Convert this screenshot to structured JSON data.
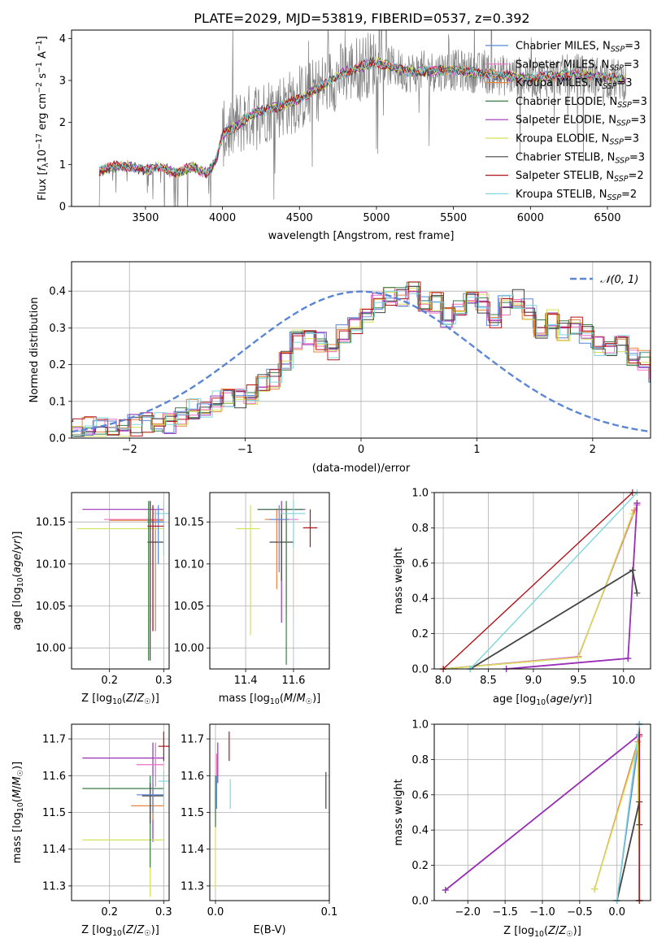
{
  "figure_title": "PLATE=2029, MJD=53819, FIBERID=0537, z=0.392",
  "legend_entries": [
    {
      "label": "Chabrier MILES, N_{SSP}=3",
      "color": "#5b86d6"
    },
    {
      "label": "Salpeter MILES, N_{SSP}=3",
      "color": "#f06ec4"
    },
    {
      "label": "Kroupa MILES, N_{SSP}=3",
      "color": "#e8833a"
    },
    {
      "label": "Chabrier ELODIE, N_{SSP}=3",
      "color": "#3a7d44"
    },
    {
      "label": "Salpeter ELODIE, N_{SSP}=3",
      "color": "#9b30b8"
    },
    {
      "label": "Kroupa ELODIE, N_{SSP}=3",
      "color": "#d4e157"
    },
    {
      "label": "Chabrier STELIB, N_{SSP}=3",
      "color": "#444444"
    },
    {
      "label": "Salpeter STELIB, N_{SSP}=2",
      "color": "#b3141b"
    },
    {
      "label": "Kroupa STELIB, N_{SSP}=2",
      "color": "#7fd6dc"
    }
  ],
  "normal_legend": "𝒩(0, 1)",
  "chart_data": [
    {
      "id": "spectrum",
      "type": "line",
      "xlabel": "wavelength [Angstrom, rest frame]",
      "ylabel": "Flux [f_λ 10^{-17} erg cm^{-2} s^{-1} A^{-1}]",
      "xlim": [
        3020,
        6780
      ],
      "ylim": [
        0,
        4.2
      ],
      "xticks": [
        3500,
        4000,
        4500,
        5000,
        5500,
        6000,
        6500
      ],
      "yticks": [
        0,
        1,
        2,
        3,
        4
      ],
      "grid": false,
      "legend_position": "top-right",
      "data_range": [
        3200,
        6620
      ],
      "continuum_points": [
        [
          3200,
          0.85
        ],
        [
          3300,
          0.95
        ],
        [
          3400,
          0.95
        ],
        [
          3500,
          0.85
        ],
        [
          3600,
          0.95
        ],
        [
          3700,
          0.78
        ],
        [
          3800,
          0.95
        ],
        [
          3900,
          0.78
        ],
        [
          3960,
          1.1
        ],
        [
          4000,
          1.7
        ],
        [
          4200,
          2.2
        ],
        [
          4500,
          2.55
        ],
        [
          4800,
          3.2
        ],
        [
          5000,
          3.45
        ],
        [
          5200,
          3.2
        ],
        [
          5500,
          3.25
        ],
        [
          6000,
          3.05
        ],
        [
          6300,
          3.15
        ],
        [
          6620,
          3.0
        ]
      ]
    },
    {
      "id": "residual_hist",
      "type": "histogram",
      "xlabel": "(data-model)/error",
      "ylabel": "Normed distribution",
      "xlim": [
        -2.5,
        2.5
      ],
      "ylim": [
        0,
        0.48
      ],
      "xticks": [
        -2,
        -1,
        0,
        1,
        2
      ],
      "yticks": [
        0.0,
        0.1,
        0.2,
        0.3,
        0.4
      ],
      "grid": true,
      "legend_position": "top-right",
      "bin_width": 0.1,
      "series_base": [
        0.02,
        0.025,
        0.03,
        0.03,
        0.035,
        0.03,
        0.035,
        0.04,
        0.045,
        0.04,
        0.06,
        0.08,
        0.085,
        0.1,
        0.11,
        0.11,
        0.12,
        0.15,
        0.16,
        0.21,
        0.27,
        0.28,
        0.26,
        0.24,
        0.28,
        0.31,
        0.34,
        0.37,
        0.39,
        0.38,
        0.41,
        0.36,
        0.37,
        0.33,
        0.36,
        0.39,
        0.37,
        0.33,
        0.36,
        0.38,
        0.35,
        0.3,
        0.32,
        0.29,
        0.3,
        0.28,
        0.25,
        0.24,
        0.26,
        0.22,
        0.21,
        0.18,
        0.18,
        0.16,
        0.15,
        0.13,
        0.12,
        0.1,
        0.09,
        0.08,
        0.07,
        0.065,
        0.06,
        0.045,
        0.045,
        0.04,
        0.035,
        0.04,
        0.03,
        0.025,
        0.03,
        0.035
      ],
      "normal_curve": {
        "mu": 0,
        "sigma": 1,
        "color": "#5b86d6"
      }
    },
    {
      "id": "age_vs_Z",
      "type": "errorbar",
      "xlabel": "Z [log10(Z/Z☉)]",
      "ylabel": "age [log10(age/yr)]",
      "xlim": [
        0.13,
        0.31
      ],
      "ylim": [
        9.975,
        10.185
      ],
      "xticks": [
        0.2,
        0.3
      ],
      "yticks": [
        10.0,
        10.05,
        10.1,
        10.15
      ],
      "grid": true,
      "points": [
        {
          "x": 0.275,
          "y": 10.165,
          "xlo": 0.15,
          "xhi": 0.3,
          "ylo": 10.03,
          "yhi": 10.175,
          "c": 4
        },
        {
          "x": 0.28,
          "y": 10.153,
          "xlo": 0.19,
          "xhi": 0.3,
          "ylo": 10.02,
          "yhi": 10.17,
          "c": 1
        },
        {
          "x": 0.285,
          "y": 10.152,
          "xlo": 0.2,
          "xhi": 0.3,
          "ylo": 10.02,
          "yhi": 10.165,
          "c": 2
        },
        {
          "x": 0.275,
          "y": 10.142,
          "xlo": 0.14,
          "xhi": 0.3,
          "ylo": 10.0,
          "yhi": 10.17,
          "c": 5
        },
        {
          "x": 0.275,
          "y": 10.126,
          "xlo": 0.27,
          "xhi": 0.3,
          "ylo": 9.985,
          "yhi": 10.175,
          "c": 6
        },
        {
          "x": 0.272,
          "y": 10.15,
          "xlo": 0.27,
          "xhi": 0.3,
          "ylo": 9.985,
          "yhi": 10.175,
          "c": 3
        },
        {
          "x": 0.3,
          "y": 10.16,
          "xlo": 0.28,
          "xhi": 0.31,
          "ylo": 10.11,
          "yhi": 10.175,
          "c": 8
        },
        {
          "x": 0.29,
          "y": 10.15,
          "xlo": 0.275,
          "xhi": 0.3,
          "ylo": 10.1,
          "yhi": 10.17,
          "c": 0
        },
        {
          "x": 0.28,
          "y": 10.145,
          "xlo": 0.27,
          "xhi": 0.3,
          "ylo": 10.02,
          "yhi": 10.17,
          "c": 7
        }
      ]
    },
    {
      "id": "age_vs_mass",
      "type": "errorbar",
      "xlabel": "mass [log10(M/M☉)]",
      "ylabel": "",
      "xlim": [
        11.25,
        11.75
      ],
      "ylim": [
        9.975,
        10.185
      ],
      "xticks": [
        11.4,
        11.6
      ],
      "yticks": [
        10.0,
        10.05,
        10.1,
        10.15
      ],
      "grid": true,
      "points": [
        {
          "x": 11.55,
          "y": 10.165,
          "xlo": 11.45,
          "xhi": 11.65,
          "ylo": 10.03,
          "yhi": 10.175,
          "c": 4
        },
        {
          "x": 11.57,
          "y": 10.153,
          "xlo": 11.49,
          "xhi": 11.62,
          "ylo": 10.04,
          "yhi": 10.17,
          "c": 1
        },
        {
          "x": 11.53,
          "y": 10.153,
          "xlo": 11.48,
          "xhi": 11.58,
          "ylo": 10.07,
          "yhi": 10.165,
          "c": 2
        },
        {
          "x": 11.42,
          "y": 10.142,
          "xlo": 11.36,
          "xhi": 11.46,
          "ylo": 10.015,
          "yhi": 10.17,
          "c": 5
        },
        {
          "x": 11.55,
          "y": 10.126,
          "xlo": 11.5,
          "xhi": 11.6,
          "ylo": 10.08,
          "yhi": 10.16,
          "c": 6
        },
        {
          "x": 11.57,
          "y": 10.165,
          "xlo": 11.45,
          "xhi": 11.64,
          "ylo": 9.98,
          "yhi": 10.175,
          "c": 3
        },
        {
          "x": 11.6,
          "y": 10.16,
          "xlo": 11.55,
          "xhi": 11.65,
          "ylo": 10.12,
          "yhi": 10.175,
          "c": 8
        },
        {
          "x": 11.54,
          "y": 10.153,
          "xlo": 11.5,
          "xhi": 11.58,
          "ylo": 10.09,
          "yhi": 10.17,
          "c": 0
        },
        {
          "x": 11.67,
          "y": 10.143,
          "xlo": 11.64,
          "xhi": 11.7,
          "ylo": 10.12,
          "yhi": 10.165,
          "c": 7
        }
      ]
    },
    {
      "id": "weight_vs_age",
      "type": "line",
      "xlabel": "age [log10(age/yr)]",
      "ylabel": "mass weight",
      "xlim": [
        7.9,
        10.3
      ],
      "ylim": [
        0,
        1
      ],
      "xticks": [
        8.0,
        8.5,
        9.0,
        9.5,
        10.0
      ],
      "yticks": [
        0.0,
        0.2,
        0.4,
        0.6,
        0.8,
        1.0
      ],
      "grid": true,
      "series": [
        {
          "c": 0,
          "x": [
            8.0,
            9.5,
            10.15
          ],
          "y": [
            0.0,
            0.07,
            0.93
          ]
        },
        {
          "c": 1,
          "x": [
            8.0,
            9.5,
            10.15
          ],
          "y": [
            0.0,
            0.07,
            0.93
          ]
        },
        {
          "c": 2,
          "x": [
            8.0,
            9.5,
            10.12
          ],
          "y": [
            0.0,
            0.065,
            0.9
          ]
        },
        {
          "c": 3,
          "x": [
            8.7,
            10.05,
            10.15
          ],
          "y": [
            0.0,
            0.06,
            0.94
          ]
        },
        {
          "c": 4,
          "x": [
            8.7,
            10.05,
            10.15
          ],
          "y": [
            0.0,
            0.06,
            0.94
          ]
        },
        {
          "c": 5,
          "x": [
            8.0,
            9.5,
            10.1
          ],
          "y": [
            0.0,
            0.065,
            0.88
          ]
        },
        {
          "c": 6,
          "x": [
            8.3,
            10.1,
            10.15
          ],
          "y": [
            0.0,
            0.56,
            0.43
          ]
        },
        {
          "c": 7,
          "x": [
            8.0,
            10.1
          ],
          "y": [
            0.0,
            1.0
          ]
        },
        {
          "c": 8,
          "x": [
            8.3,
            10.15
          ],
          "y": [
            0.0,
            1.0
          ]
        }
      ]
    },
    {
      "id": "mass_vs_Z",
      "type": "errorbar",
      "xlabel": "Z [log10(Z/Z☉)]",
      "ylabel": "mass [log10(M/M☉)]",
      "xlim": [
        0.13,
        0.31
      ],
      "ylim": [
        11.26,
        11.74
      ],
      "xticks": [
        0.2,
        0.3
      ],
      "yticks": [
        11.3,
        11.4,
        11.5,
        11.6,
        11.7
      ],
      "grid": true,
      "points": [
        {
          "x": 0.28,
          "y": 11.648,
          "xlo": 0.15,
          "xhi": 0.3,
          "ylo": 11.42,
          "yhi": 11.69,
          "c": 4
        },
        {
          "x": 0.285,
          "y": 11.63,
          "xlo": 0.25,
          "xhi": 0.3,
          "ylo": 11.57,
          "yhi": 11.69,
          "c": 1
        },
        {
          "x": 0.28,
          "y": 11.518,
          "xlo": 0.24,
          "xhi": 0.3,
          "ylo": 11.48,
          "yhi": 11.58,
          "c": 2
        },
        {
          "x": 0.275,
          "y": 11.425,
          "xlo": 0.15,
          "xhi": 0.3,
          "ylo": 11.27,
          "yhi": 11.46,
          "c": 5
        },
        {
          "x": 0.275,
          "y": 11.565,
          "xlo": 0.15,
          "xhi": 0.3,
          "ylo": 11.35,
          "yhi": 11.6,
          "c": 3
        },
        {
          "x": 0.275,
          "y": 11.545,
          "xlo": 0.26,
          "xhi": 0.3,
          "ylo": 11.47,
          "yhi": 11.58,
          "c": 6
        },
        {
          "x": 0.28,
          "y": 11.548,
          "xlo": 0.25,
          "xhi": 0.3,
          "ylo": 11.5,
          "yhi": 11.6,
          "c": 0
        },
        {
          "x": 0.3,
          "y": 11.68,
          "xlo": 0.29,
          "xhi": 0.31,
          "ylo": 11.64,
          "yhi": 11.72,
          "c": 7
        },
        {
          "x": 0.3,
          "y": 11.585,
          "xlo": 0.29,
          "xhi": 0.31,
          "ylo": 11.52,
          "yhi": 11.61,
          "c": 8
        }
      ]
    },
    {
      "id": "mass_vs_EBV",
      "type": "scatter",
      "xlabel": "E(B-V)",
      "ylabel": "",
      "xlim": [
        -0.005,
        0.1
      ],
      "ylim": [
        11.26,
        11.74
      ],
      "xticks": [
        0.0,
        0.1
      ],
      "yticks": [
        11.3,
        11.4,
        11.5,
        11.6,
        11.7
      ],
      "grid": true,
      "points": [
        {
          "x": 0.002,
          "y": 11.63,
          "ylo": 11.58,
          "yhi": 11.69,
          "c": 4
        },
        {
          "x": 0.001,
          "y": 11.61,
          "ylo": 11.56,
          "yhi": 11.66,
          "c": 1
        },
        {
          "x": 0.0,
          "y": 11.52,
          "ylo": 11.47,
          "yhi": 11.56,
          "c": 2
        },
        {
          "x": 0.0,
          "y": 11.42,
          "ylo": 11.29,
          "yhi": 11.47,
          "c": 5
        },
        {
          "x": 0.0,
          "y": 11.5,
          "ylo": 11.46,
          "yhi": 11.6,
          "c": 3
        },
        {
          "x": 0.097,
          "y": 11.56,
          "ylo": 11.51,
          "yhi": 11.61,
          "c": 6
        },
        {
          "x": 0.012,
          "y": 11.68,
          "ylo": 11.64,
          "yhi": 11.72,
          "c": 7
        },
        {
          "x": 0.013,
          "y": 11.55,
          "ylo": 11.51,
          "yhi": 11.59,
          "c": 8
        },
        {
          "x": 0.001,
          "y": 11.55,
          "ylo": 11.51,
          "yhi": 11.6,
          "c": 0
        }
      ]
    },
    {
      "id": "weight_vs_Z",
      "type": "line",
      "xlabel": "Z [log10(Z/Z☉)]",
      "ylabel": "mass weight",
      "xlim": [
        -2.45,
        0.45
      ],
      "ylim": [
        0,
        1
      ],
      "xticks": [
        -2.0,
        -1.5,
        -1.0,
        -0.5,
        0.0
      ],
      "yticks": [
        0.0,
        0.2,
        0.4,
        0.6,
        0.8,
        1.0
      ],
      "grid": true,
      "series": [
        {
          "c": 0,
          "x": [
            0.0,
            0.3,
            0.3
          ],
          "y": [
            0.0,
            0.93,
            1.0
          ]
        },
        {
          "c": 1,
          "x": [
            -0.3,
            0.3,
            0.3
          ],
          "y": [
            0.065,
            0.93,
            0.0
          ]
        },
        {
          "c": 2,
          "x": [
            -0.3,
            0.28,
            0.3
          ],
          "y": [
            0.065,
            0.9,
            0.0
          ]
        },
        {
          "c": 3,
          "x": [
            -2.3,
            0.3,
            0.3
          ],
          "y": [
            0.06,
            0.94,
            0.0
          ]
        },
        {
          "c": 4,
          "x": [
            -2.3,
            0.3,
            0.3
          ],
          "y": [
            0.06,
            0.94,
            0.0
          ]
        },
        {
          "c": 5,
          "x": [
            -0.3,
            0.28,
            0.3
          ],
          "y": [
            0.065,
            0.88,
            0.0
          ]
        },
        {
          "c": 6,
          "x": [
            0.0,
            0.3,
            0.3
          ],
          "y": [
            0.0,
            0.56,
            0.43
          ]
        },
        {
          "c": 7,
          "x": [
            0.3,
            0.3
          ],
          "y": [
            0.0,
            1.0
          ]
        },
        {
          "c": 8,
          "x": [
            0.0,
            0.3
          ],
          "y": [
            0.0,
            1.0
          ]
        }
      ]
    }
  ]
}
